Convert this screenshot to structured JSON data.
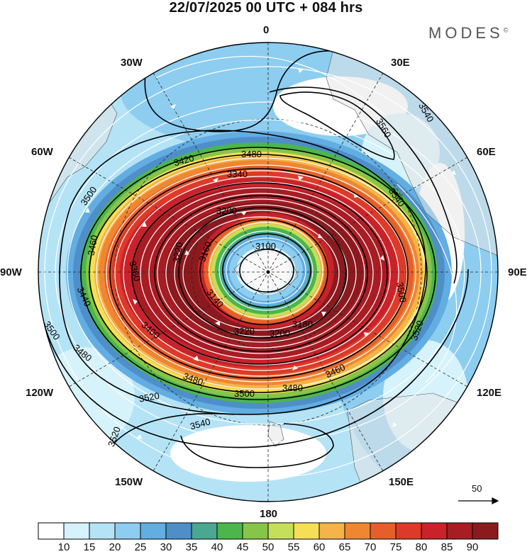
{
  "title": "22/07/2025  00 UTC  + 084 hrs",
  "brand": "MODES",
  "brand_mark": "©",
  "longitude_labels": [
    {
      "id": "lon-0",
      "text": "0"
    },
    {
      "id": "lon-30e",
      "text": "30E"
    },
    {
      "id": "lon-60e",
      "text": "60E"
    },
    {
      "id": "lon-90e",
      "text": "90E"
    },
    {
      "id": "lon-120e",
      "text": "120E"
    },
    {
      "id": "lon-150e",
      "text": "150E"
    },
    {
      "id": "lon-180",
      "text": "180"
    },
    {
      "id": "lon-150w",
      "text": "150W"
    },
    {
      "id": "lon-120w",
      "text": "120W"
    },
    {
      "id": "lon-90w",
      "text": "90W"
    },
    {
      "id": "lon-60w",
      "text": "60W"
    },
    {
      "id": "lon-30w",
      "text": "30W"
    }
  ],
  "contour_labels": [
    "3100",
    "3140",
    "3160",
    "3180",
    "3200",
    "3220",
    "3240",
    "3280",
    "3300",
    "3340",
    "3360",
    "3380",
    "3400",
    "3420",
    "3440",
    "3460",
    "3480",
    "3500",
    "3520",
    "3540",
    "3560"
  ],
  "wind_reference": {
    "value": "50"
  },
  "colorbar": {
    "levels": [
      "10",
      "15",
      "20",
      "25",
      "30",
      "35",
      "40",
      "45",
      "50",
      "55",
      "60",
      "65",
      "70",
      "75",
      "80",
      "85",
      "90"
    ],
    "colors": [
      "#ffffff",
      "#d6f2fb",
      "#b4e3f6",
      "#8dcdf0",
      "#62ade2",
      "#4f8fc9",
      "#4aa791",
      "#4cb64c",
      "#87c548",
      "#c5df5a",
      "#f6df57",
      "#f5b348",
      "#ef8632",
      "#e65f2a",
      "#dd3a2a",
      "#c9222b",
      "#a81c24",
      "#8b1a1f"
    ]
  }
}
